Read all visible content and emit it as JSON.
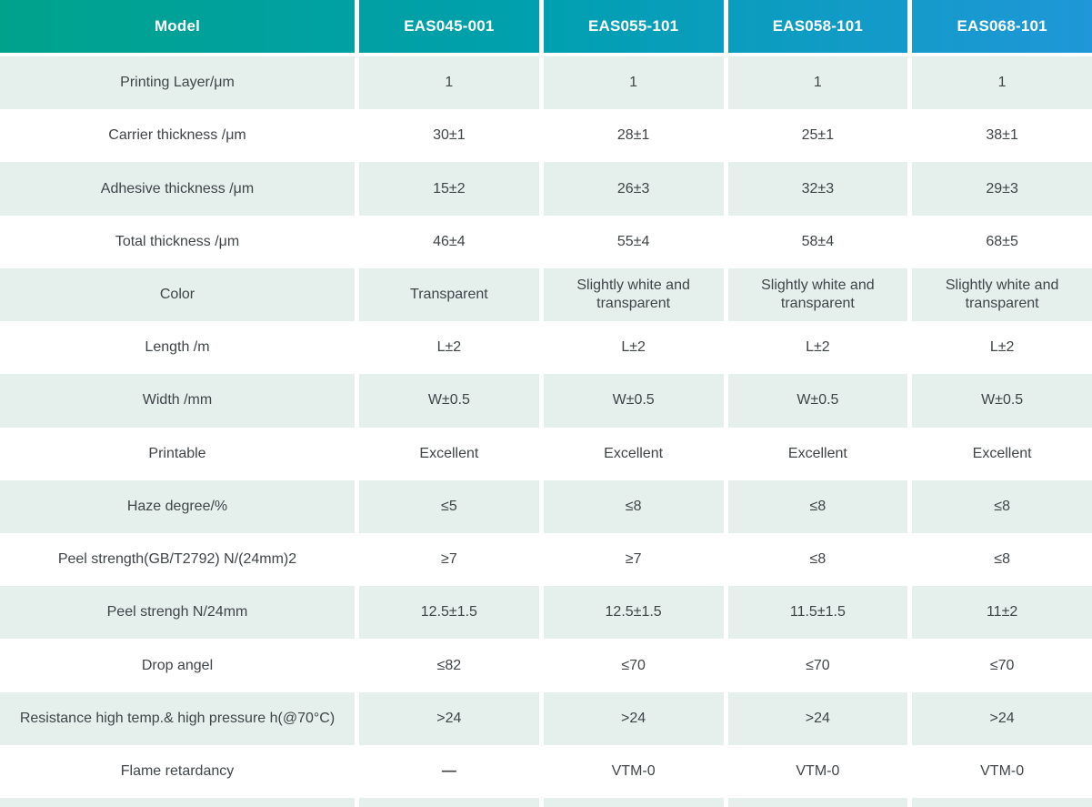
{
  "table": {
    "header": {
      "model_label": "Model",
      "columns": [
        "EAS045-001",
        "EAS055-101",
        "EAS058-101",
        "EAS068-101"
      ]
    },
    "rows": [
      {
        "label": "Printing Layer/μm",
        "values": [
          "1",
          "1",
          "1",
          "1"
        ]
      },
      {
        "label": "Carrier thickness /μm",
        "values": [
          "30±1",
          "28±1",
          "25±1",
          "38±1"
        ]
      },
      {
        "label": "Adhesive thickness /μm",
        "values": [
          "15±2",
          "26±3",
          "32±3",
          "29±3"
        ]
      },
      {
        "label": "Total thickness /μm",
        "values": [
          "46±4",
          "55±4",
          "58±4",
          "68±5"
        ]
      },
      {
        "label": "Color",
        "values": [
          "Transparent",
          "Slightly white and transparent",
          "Slightly white and transparent",
          "Slightly white and transparent"
        ]
      },
      {
        "label": "Length /m",
        "values": [
          "L±2",
          "L±2",
          "L±2",
          "L±2"
        ]
      },
      {
        "label": "Width /mm",
        "values": [
          "W±0.5",
          "W±0.5",
          "W±0.5",
          "W±0.5"
        ]
      },
      {
        "label": "Printable",
        "values": [
          "Excellent",
          "Excellent",
          "Excellent",
          "Excellent"
        ]
      },
      {
        "label": "Haze degree/%",
        "values": [
          "≤5",
          "≤8",
          "≤8",
          "≤8"
        ]
      },
      {
        "label": "Peel strength(GB/T2792)  N/(24mm)2",
        "values": [
          "≥7",
          "≥7",
          "≤8",
          "≤8"
        ]
      },
      {
        "label": "Peel strengh N/24mm",
        "values": [
          "12.5±1.5",
          "12.5±1.5",
          "11.5±1.5",
          "11±2"
        ]
      },
      {
        "label": "Drop angel",
        "values": [
          "≤82",
          "≤70",
          "≤70",
          "≤70"
        ]
      },
      {
        "label": "Resistance high temp.& high pressure h(@70°C)",
        "values": [
          ">24",
          ">24",
          ">24",
          ">24"
        ]
      },
      {
        "label": "Flame retardancy",
        "values": [
          "—",
          "VTM-0",
          "VTM-0",
          "VTM-0"
        ]
      }
    ],
    "colors": {
      "header_gradient_start": "#00a28c",
      "header_gradient_mid": "#00a0b0",
      "header_gradient_end": "#1f97d8",
      "striped_row_bg": "#e5f0ed",
      "plain_row_bg": "#ffffff",
      "text": "#3f4447",
      "header_text": "#ffffff"
    }
  }
}
